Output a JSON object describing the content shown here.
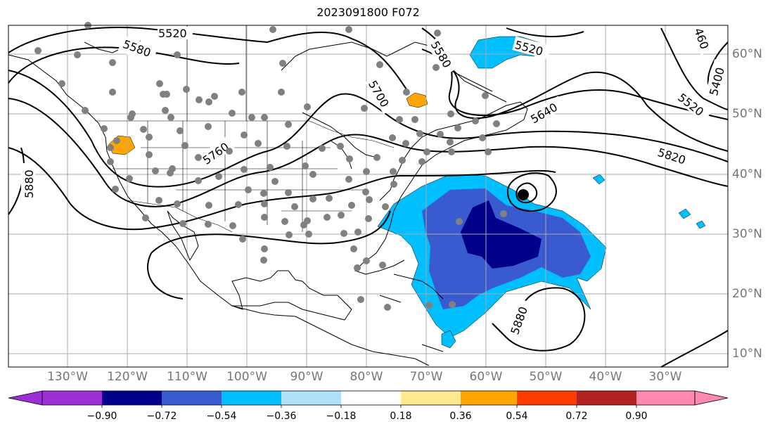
{
  "title": "2023091800 F072",
  "lon_labels": [
    "130°W",
    "120°W",
    "110°W",
    "100°W",
    "90°W",
    "80°W",
    "70°W",
    "60°W",
    "50°W",
    "40°W",
    "30°W"
  ],
  "lat_labels": [
    "60°N",
    "50°N",
    "40°N",
    "30°N",
    "20°N",
    "10°N"
  ],
  "contour_labels": [
    "5520",
    "5580",
    "5580",
    "5520",
    "5700",
    "5640",
    "5760",
    "5820",
    "5520",
    "5400",
    "460",
    "5880",
    "5880"
  ],
  "colorbar": {
    "ticks": [
      "−0.90",
      "−0.72",
      "−0.54",
      "−0.36",
      "−0.18",
      "0.18",
      "0.36",
      "0.54",
      "0.72",
      "0.90"
    ],
    "colors": [
      "#9b30d9",
      "#00008b",
      "#3a5bcf",
      "#00bfff",
      "#b0e0fa",
      "#ffffff",
      "#ffe98f",
      "#ffa500",
      "#ff3c00",
      "#b22222",
      "#ff88b0"
    ]
  },
  "colors": {
    "anomaly_dark_blue": "#00008b",
    "anomaly_mid_blue": "#3a5bcf",
    "anomaly_light_blue": "#00bfff",
    "anomaly_orange": "#ffa500",
    "gridline": "#aaaaaa",
    "dot": "#808080"
  }
}
